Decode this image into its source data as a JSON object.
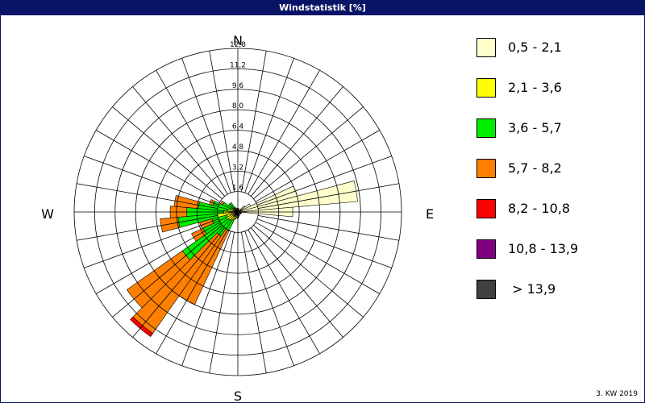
{
  "window": {
    "title": "Windstatistik [%]"
  },
  "footnote": "3. KW 2019",
  "colors": {
    "titlebar": "#0a1466",
    "grid": "#000000"
  },
  "chart_data": {
    "type": "wind-rose",
    "title": "Windstatistik [%]",
    "unit": "%",
    "radial_max": 12.8,
    "radial_ticks": [
      "1,6",
      "3,2",
      "4,8",
      "6,4",
      "8,0",
      "9,6",
      "11,2",
      "12,8"
    ],
    "radial_tick_values": [
      1.6,
      3.2,
      4.8,
      6.4,
      8.0,
      9.6,
      11.2,
      12.8
    ],
    "compass_labels": {
      "n": "N",
      "e": "E",
      "s": "S",
      "w": "W"
    },
    "direction_count": 36,
    "bins": [
      {
        "label": "0,5 - 2,1",
        "color": "#ffffcc"
      },
      {
        "label": "2,1 - 3,6",
        "color": "#ffff00"
      },
      {
        "label": "3,6 - 5,7",
        "color": "#00ee00"
      },
      {
        "label": "5,7 - 8,2",
        "color": "#ff8000"
      },
      {
        "label": "8,2 - 10,8",
        "color": "#ff0000"
      },
      {
        "label": "10,8 - 13,9",
        "color": "#800080"
      },
      {
        "label": " > 13,9",
        "color": "#404040"
      }
    ],
    "sectors": [
      {
        "direction": 0,
        "values": [
          0.2,
          0.1,
          0,
          0,
          0,
          0,
          0
        ]
      },
      {
        "direction": 10,
        "values": [
          0.3,
          0,
          0,
          0,
          0,
          0,
          0
        ]
      },
      {
        "direction": 20,
        "values": [
          0.2,
          0,
          0,
          0,
          0,
          0,
          0
        ]
      },
      {
        "direction": 50,
        "values": [
          0.7,
          0,
          0,
          0,
          0,
          0,
          0
        ]
      },
      {
        "direction": 60,
        "values": [
          1.1,
          0,
          0,
          0,
          0,
          0,
          0
        ]
      },
      {
        "direction": 70,
        "values": [
          4.8,
          0,
          0,
          0,
          0,
          0,
          0
        ]
      },
      {
        "direction": 80,
        "values": [
          9.4,
          0,
          0,
          0,
          0,
          0,
          0
        ]
      },
      {
        "direction": 90,
        "values": [
          4.3,
          0,
          0,
          0,
          0,
          0,
          0
        ]
      },
      {
        "direction": 100,
        "values": [
          0.3,
          0,
          0,
          0,
          0,
          0,
          0
        ]
      },
      {
        "direction": 120,
        "values": [
          0.3,
          0,
          0,
          0,
          0,
          0,
          0
        ]
      },
      {
        "direction": 150,
        "values": [
          0.3,
          0,
          0,
          0,
          0,
          0,
          0
        ]
      },
      {
        "direction": 170,
        "values": [
          0.3,
          0.1,
          0,
          0,
          0,
          0,
          0
        ]
      },
      {
        "direction": 180,
        "values": [
          0.4,
          0.1,
          0,
          0,
          0,
          0,
          0
        ]
      },
      {
        "direction": 190,
        "values": [
          0.3,
          0.1,
          0,
          0,
          0,
          0,
          0
        ]
      },
      {
        "direction": 200,
        "values": [
          0.3,
          0.2,
          0.1,
          0,
          0,
          0,
          0
        ]
      },
      {
        "direction": 210,
        "values": [
          0.4,
          0.3,
          0.9,
          6.4,
          0,
          0,
          0
        ]
      },
      {
        "direction": 220,
        "values": [
          0.4,
          0.4,
          1.5,
          9.3,
          0.3,
          0,
          0
        ]
      },
      {
        "direction": 230,
        "values": [
          0.4,
          0.5,
          4.4,
          5.3,
          0,
          0,
          0
        ]
      },
      {
        "direction": 240,
        "values": [
          0.4,
          0.6,
          2.0,
          1.0,
          0,
          0,
          0
        ]
      },
      {
        "direction": 250,
        "values": [
          0.4,
          0.5,
          1.2,
          1.0,
          0,
          0,
          0
        ]
      },
      {
        "direction": 260,
        "values": [
          0.5,
          1.1,
          3.1,
          1.4,
          0,
          0,
          0
        ]
      },
      {
        "direction": 270,
        "values": [
          0.4,
          0.7,
          2.9,
          1.3,
          0,
          0,
          0
        ]
      },
      {
        "direction": 280,
        "values": [
          0.3,
          0.5,
          2.3,
          1.9,
          0,
          0,
          0
        ]
      },
      {
        "direction": 290,
        "values": [
          0.3,
          0.3,
          1.4,
          0.3,
          0,
          0,
          0
        ]
      },
      {
        "direction": 300,
        "values": [
          0.2,
          0.2,
          0.9,
          0.2,
          0,
          0,
          0
        ]
      },
      {
        "direction": 310,
        "values": [
          0.2,
          0.2,
          0.5,
          0,
          0,
          0,
          0
        ]
      },
      {
        "direction": 320,
        "values": [
          0.2,
          0.2,
          0.5,
          0,
          0,
          0,
          0
        ]
      },
      {
        "direction": 330,
        "values": [
          0.2,
          0.1,
          0.1,
          0,
          0,
          0,
          0
        ]
      },
      {
        "direction": 350,
        "values": [
          0.2,
          0.1,
          0,
          0,
          0,
          0,
          0
        ]
      }
    ]
  }
}
